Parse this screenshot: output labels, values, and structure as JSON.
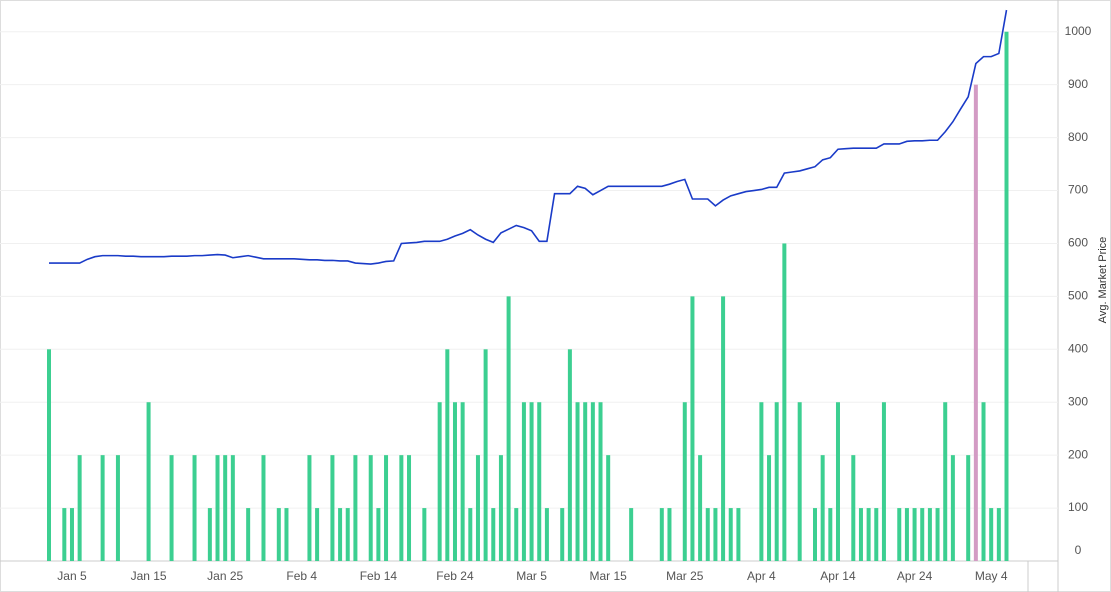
{
  "chart_data": {
    "type": "bar-line",
    "y_label": "Avg. Market Price",
    "x": [
      "Jan 2",
      "Jan 3",
      "Jan 4",
      "Jan 5",
      "Jan 6",
      "Jan 7",
      "Jan 8",
      "Jan 9",
      "Jan 10",
      "Jan 11",
      "Jan 12",
      "Jan 13",
      "Jan 14",
      "Jan 15",
      "Jan 16",
      "Jan 17",
      "Jan 18",
      "Jan 19",
      "Jan 20",
      "Jan 21",
      "Jan 22",
      "Jan 23",
      "Jan 24",
      "Jan 25",
      "Jan 26",
      "Jan 27",
      "Jan 28",
      "Jan 29",
      "Jan 30",
      "Jan 31",
      "Feb 1",
      "Feb 2",
      "Feb 3",
      "Feb 4",
      "Feb 5",
      "Feb 6",
      "Feb 7",
      "Feb 8",
      "Feb 9",
      "Feb 10",
      "Feb 11",
      "Feb 12",
      "Feb 13",
      "Feb 14",
      "Feb 15",
      "Feb 16",
      "Feb 17",
      "Feb 18",
      "Feb 19",
      "Feb 20",
      "Feb 21",
      "Feb 22",
      "Feb 23",
      "Feb 24",
      "Feb 25",
      "Feb 26",
      "Feb 27",
      "Feb 28",
      "Feb 29",
      "Mar 1",
      "Mar 2",
      "Mar 3",
      "Mar 4",
      "Mar 5",
      "Mar 6",
      "Mar 7",
      "Mar 8",
      "Mar 9",
      "Mar 10",
      "Mar 11",
      "Mar 12",
      "Mar 13",
      "Mar 14",
      "Mar 15",
      "Mar 16",
      "Mar 17",
      "Mar 18",
      "Mar 19",
      "Mar 20",
      "Mar 21",
      "Mar 22",
      "Mar 23",
      "Mar 24",
      "Mar 25",
      "Mar 26",
      "Mar 27",
      "Mar 28",
      "Mar 29",
      "Mar 30",
      "Mar 31",
      "Apr 1",
      "Apr 2",
      "Apr 3",
      "Apr 4",
      "Apr 5",
      "Apr 6",
      "Apr 7",
      "Apr 8",
      "Apr 9",
      "Apr 10",
      "Apr 11",
      "Apr 12",
      "Apr 13",
      "Apr 14",
      "Apr 15",
      "Apr 16",
      "Apr 17",
      "Apr 18",
      "Apr 19",
      "Apr 20",
      "Apr 21",
      "Apr 22",
      "Apr 23",
      "Apr 24",
      "Apr 25",
      "Apr 26",
      "Apr 27",
      "Apr 28",
      "Apr 29",
      "Apr 30",
      "May 1",
      "May 2",
      "May 3",
      "May 4",
      "May 5",
      "May 6"
    ],
    "series": [
      {
        "type": "bar",
        "color": "#3ccf91",
        "values": [
          400,
          null,
          100,
          100,
          200,
          null,
          null,
          200,
          null,
          200,
          null,
          null,
          null,
          300,
          null,
          null,
          200,
          null,
          null,
          200,
          null,
          100,
          200,
          200,
          200,
          null,
          100,
          null,
          200,
          null,
          100,
          100,
          null,
          null,
          200,
          100,
          null,
          200,
          100,
          100,
          200,
          null,
          200,
          100,
          200,
          null,
          200,
          200,
          null,
          100,
          null,
          300,
          400,
          300,
          300,
          100,
          200,
          400,
          100,
          200,
          500,
          100,
          300,
          300,
          300,
          100,
          null,
          100,
          400,
          300,
          300,
          300,
          300,
          200,
          null,
          null,
          100,
          null,
          null,
          null,
          100,
          100,
          null,
          300,
          500,
          200,
          100,
          100,
          500,
          100,
          100,
          null,
          null,
          300,
          200,
          300,
          600,
          null,
          300,
          null,
          100,
          200,
          100,
          300,
          null,
          200,
          100,
          100,
          100,
          300,
          null,
          100,
          100,
          100,
          100,
          100,
          100,
          300,
          200,
          null,
          200,
          null,
          300,
          100,
          100,
          1000
        ]
      },
      {
        "type": "bar",
        "color": "#d39bc4",
        "values": [
          null,
          null,
          null,
          null,
          null,
          null,
          null,
          null,
          null,
          null,
          null,
          null,
          null,
          null,
          null,
          null,
          null,
          null,
          null,
          null,
          null,
          null,
          null,
          null,
          null,
          null,
          null,
          null,
          null,
          null,
          null,
          null,
          null,
          null,
          null,
          null,
          null,
          null,
          null,
          null,
          null,
          null,
          null,
          null,
          null,
          null,
          null,
          null,
          null,
          null,
          null,
          null,
          null,
          null,
          null,
          null,
          null,
          null,
          null,
          null,
          null,
          null,
          null,
          null,
          null,
          null,
          null,
          null,
          null,
          null,
          null,
          null,
          null,
          null,
          null,
          null,
          null,
          null,
          null,
          null,
          null,
          null,
          null,
          null,
          null,
          null,
          null,
          null,
          null,
          null,
          null,
          null,
          null,
          null,
          null,
          null,
          null,
          null,
          null,
          null,
          null,
          null,
          null,
          null,
          null,
          null,
          null,
          null,
          null,
          null,
          null,
          null,
          null,
          null,
          null,
          null,
          null,
          null,
          null,
          null,
          null,
          900,
          null,
          null,
          null,
          null
        ]
      },
      {
        "type": "line",
        "color": "#1a3bc8",
        "values": [
          563,
          563,
          563,
          563,
          563,
          570,
          575,
          577,
          577,
          577,
          576,
          576,
          575,
          575,
          575,
          575,
          576,
          576,
          576,
          577,
          577,
          578,
          579,
          578,
          573,
          575,
          577,
          574,
          571,
          571,
          571,
          571,
          571,
          570,
          569,
          569,
          568,
          568,
          567,
          567,
          563,
          562,
          561,
          563,
          566,
          567,
          600,
          601,
          602,
          604,
          604,
          604,
          608,
          614,
          619,
          626,
          616,
          608,
          602,
          620,
          627,
          634,
          630,
          624,
          604,
          604,
          694,
          694,
          694,
          708,
          704,
          692,
          700,
          708,
          708,
          708,
          708,
          708,
          708,
          708,
          708,
          712,
          717,
          721,
          684,
          684,
          684,
          671,
          682,
          690,
          694,
          698,
          700,
          702,
          706,
          706,
          733,
          735,
          737,
          741,
          745,
          758,
          762,
          778,
          779,
          780,
          780,
          780,
          780,
          788,
          788,
          788,
          793,
          794,
          794,
          795,
          795,
          811,
          830,
          854,
          877,
          940,
          953,
          953,
          959,
          1041
        ]
      }
    ],
    "xticks": [
      "Jan 5",
      "Jan 15",
      "Jan 25",
      "Feb 4",
      "Feb 14",
      "Feb 24",
      "Mar 5",
      "Mar 15",
      "Mar 25",
      "Apr 4",
      "Apr 14",
      "Apr 24",
      "May 4"
    ],
    "ylim": [
      0,
      1060
    ],
    "yticks": [
      0,
      100,
      200,
      300,
      400,
      500,
      600,
      700,
      800,
      900,
      1000
    ],
    "grid": true
  }
}
